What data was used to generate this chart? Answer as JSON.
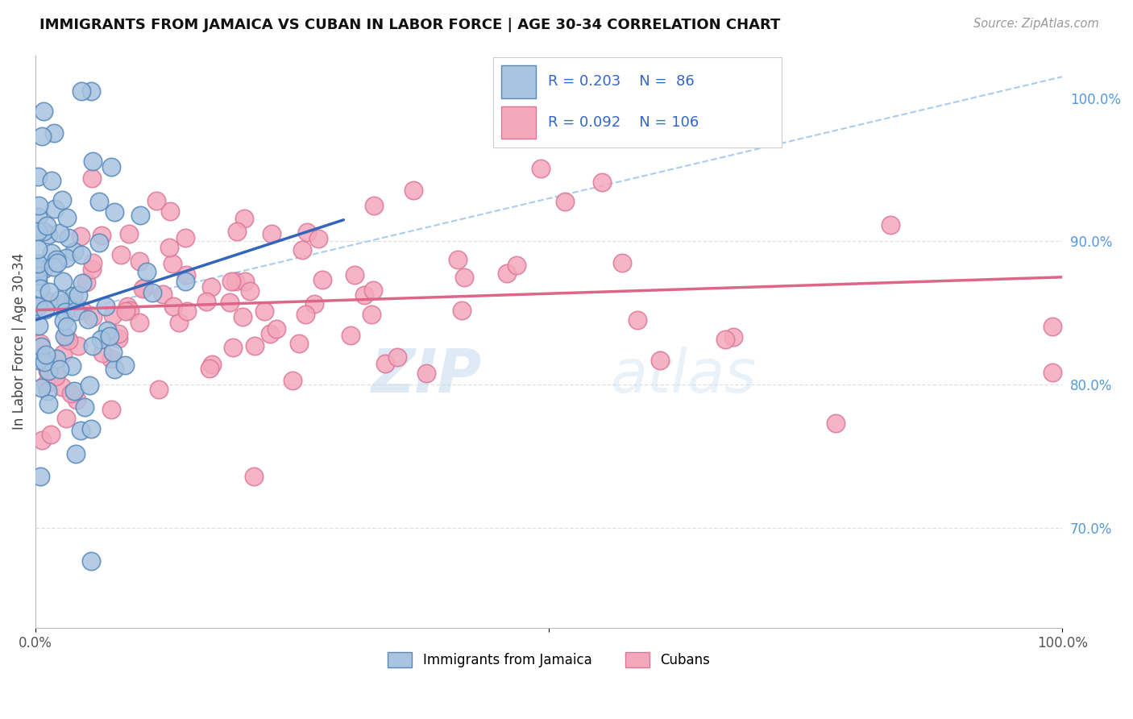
{
  "title": "IMMIGRANTS FROM JAMAICA VS CUBAN IN LABOR FORCE | AGE 30-34 CORRELATION CHART",
  "source_text": "Source: ZipAtlas.com",
  "ylabel": "In Labor Force | Age 30-34",
  "xlim": [
    0.0,
    100.0
  ],
  "ylim": [
    63.0,
    103.0
  ],
  "legend_r1": "R = 0.203",
  "legend_n1": "N =  86",
  "legend_r2": "R = 0.092",
  "legend_n2": "N = 106",
  "legend_label1": "Immigrants from Jamaica",
  "legend_label2": "Cubans",
  "watermark_zip": "ZIP",
  "watermark_atlas": "atlas",
  "blue_color": "#a8c4e0",
  "pink_color": "#f4a8bc",
  "blue_edge": "#5588bb",
  "pink_edge": "#dd7799",
  "trend_blue": "#3366bb",
  "trend_pink": "#dd6688",
  "dashed_color": "#aaccee",
  "background": "#ffffff",
  "grid_color": "#e0e0e0",
  "right_tick_color": "#5599dd",
  "jamaica_trend_x0": 0.0,
  "jamaica_trend_y0": 84.5,
  "jamaica_trend_x1": 30.0,
  "jamaica_trend_y1": 91.5,
  "cuban_trend_x0": 0.0,
  "cuban_trend_y0": 85.2,
  "cuban_trend_x1": 100.0,
  "cuban_trend_y1": 87.5,
  "diag_x0": 0.0,
  "diag_y0": 84.5,
  "diag_x1": 100.0,
  "diag_y1": 101.5
}
